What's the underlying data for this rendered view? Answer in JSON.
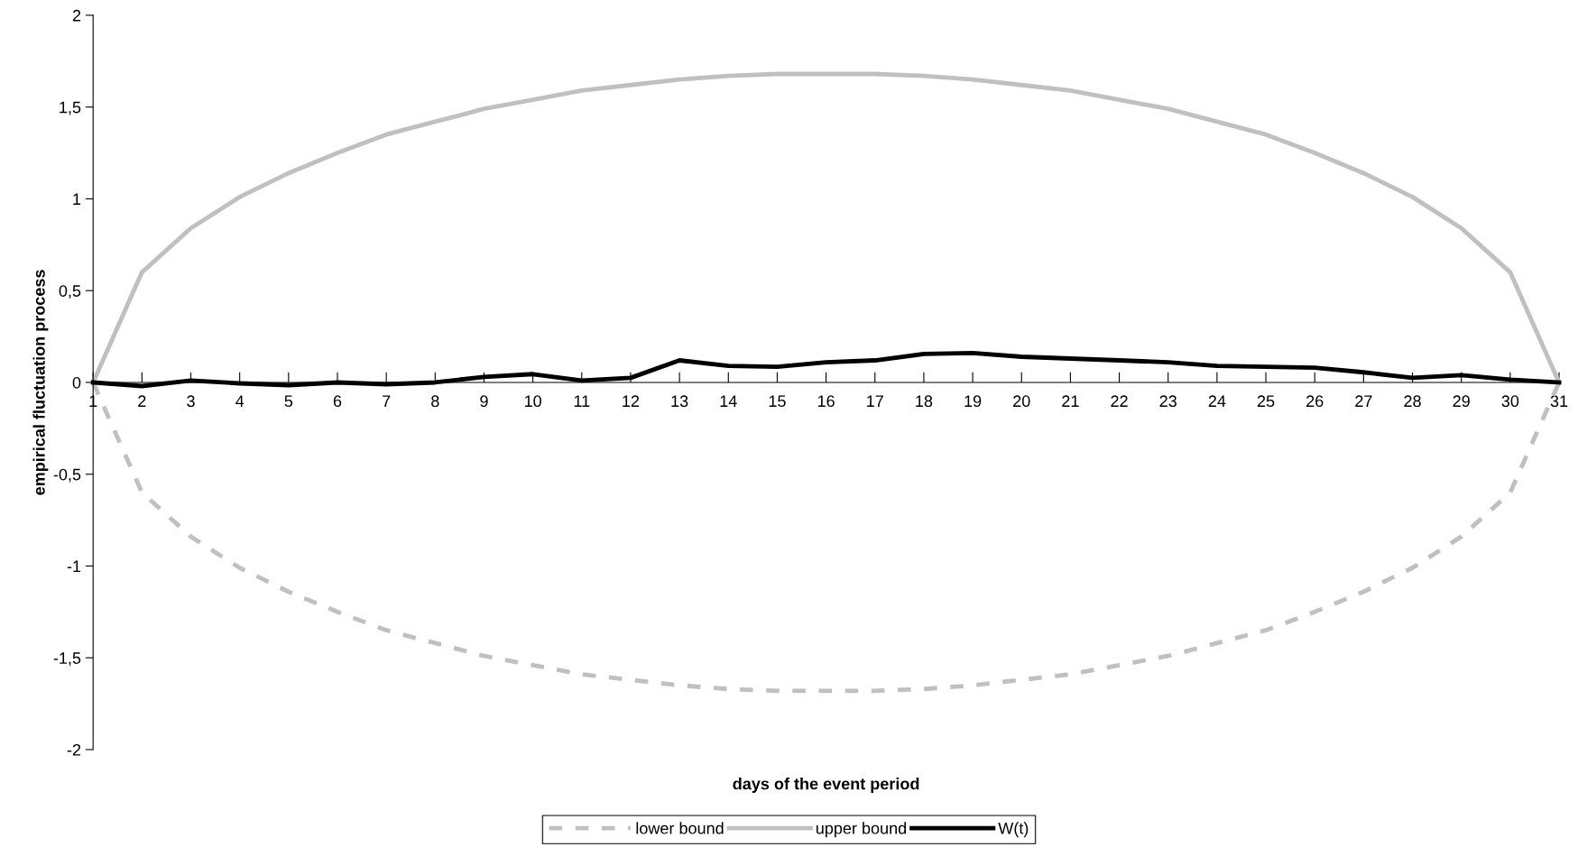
{
  "chart_data": {
    "type": "line",
    "xlabel": "days of the event period",
    "ylabel": "empirical fluctuation process",
    "categories": [
      "1",
      "2",
      "3",
      "4",
      "5",
      "6",
      "7",
      "8",
      "9",
      "10",
      "11",
      "12",
      "13",
      "14",
      "15",
      "16",
      "17",
      "18",
      "19",
      "20",
      "21",
      "22",
      "23",
      "24",
      "25",
      "26",
      "27",
      "28",
      "29",
      "30",
      "31"
    ],
    "ylim": [
      -2,
      2
    ],
    "yticks": [
      {
        "value": -2,
        "label": "-2"
      },
      {
        "value": -1.5,
        "label": "-1,5"
      },
      {
        "value": -1,
        "label": "-1"
      },
      {
        "value": -0.5,
        "label": "-0,5"
      },
      {
        "value": 0,
        "label": "0"
      },
      {
        "value": 0.5,
        "label": "0,5"
      },
      {
        "value": 1,
        "label": "1"
      },
      {
        "value": 1.5,
        "label": "1,5"
      },
      {
        "value": 2,
        "label": "2"
      }
    ],
    "grid": false,
    "legend": "bottom",
    "marker": "none",
    "series": [
      {
        "name": "lower bound",
        "color": "#c0c0c0",
        "line_style": "dashed",
        "values": [
          0,
          -0.6,
          -0.84,
          -1.01,
          -1.14,
          -1.25,
          -1.35,
          -1.42,
          -1.49,
          -1.54,
          -1.59,
          -1.62,
          -1.65,
          -1.67,
          -1.68,
          -1.68,
          -1.68,
          -1.67,
          -1.65,
          -1.62,
          -1.59,
          -1.54,
          -1.49,
          -1.42,
          -1.35,
          -1.25,
          -1.14,
          -1.01,
          -0.84,
          -0.6,
          0
        ]
      },
      {
        "name": "upper bound",
        "color": "#c0c0c0",
        "line_style": "solid",
        "values": [
          0,
          0.6,
          0.84,
          1.01,
          1.14,
          1.25,
          1.35,
          1.42,
          1.49,
          1.54,
          1.59,
          1.62,
          1.65,
          1.67,
          1.68,
          1.68,
          1.68,
          1.67,
          1.65,
          1.62,
          1.59,
          1.54,
          1.49,
          1.42,
          1.35,
          1.25,
          1.14,
          1.01,
          0.84,
          0.6,
          0
        ]
      },
      {
        "name": "W(t)",
        "color": "#000000",
        "line_style": "solid",
        "values": [
          0,
          -0.02,
          0.01,
          -0.005,
          -0.015,
          0,
          -0.01,
          0,
          0.03,
          0.045,
          0.01,
          0.025,
          0.12,
          0.09,
          0.085,
          0.11,
          0.12,
          0.155,
          0.16,
          0.14,
          0.13,
          0.12,
          0.11,
          0.09,
          0.085,
          0.08,
          0.055,
          0.025,
          0.04,
          0.015,
          0
        ]
      }
    ]
  }
}
